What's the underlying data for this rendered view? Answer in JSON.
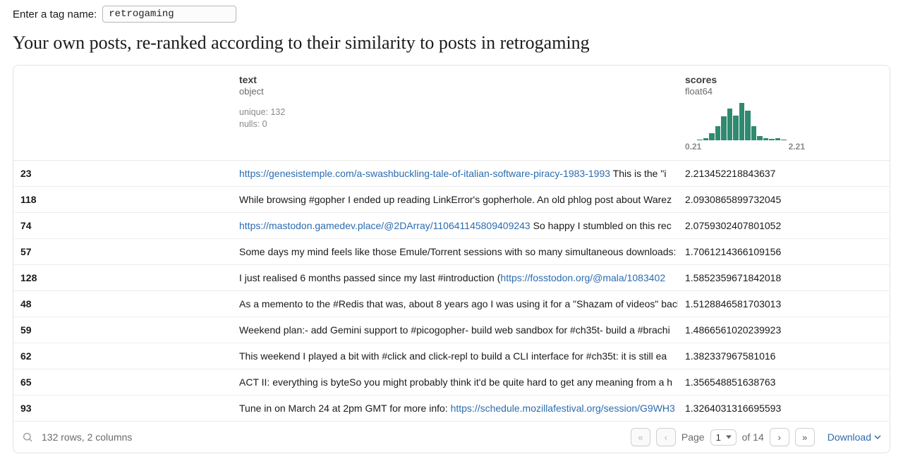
{
  "tag_entry": {
    "label": "Enter a tag name:",
    "value": "retrogaming"
  },
  "heading": "Your own posts, re-ranked according to their similarity to posts in retrogaming",
  "table": {
    "columns": {
      "text": {
        "name": "text",
        "dtype": "object",
        "meta1": "unique: 132",
        "meta2": "nulls: 0"
      },
      "scores": {
        "name": "scores",
        "dtype": "float64",
        "histogram": {
          "bars_pct": [
            0,
            0,
            2,
            6,
            18,
            35,
            58,
            78,
            60,
            92,
            72,
            35,
            10,
            5,
            3,
            5,
            2,
            0,
            0,
            0
          ],
          "axis_min": "0.21",
          "axis_max": "2.21",
          "bar_color": "#2f8a6f"
        }
      }
    },
    "rows": [
      {
        "idx": "23",
        "text_link": "https://genesistemple.com/a-swashbuckling-tale-of-italian-software-piracy-1983-1993",
        "text_after": " This is the \"i",
        "score": "2.213452218843637"
      },
      {
        "idx": "118",
        "text_plain": "While browsing #gopher I ended up reading LinkError's gopherhole. An old phlog post about Warez ",
        "score": "2.0930865899732045"
      },
      {
        "idx": "74",
        "text_link": "https://mastodon.gamedev.place/@2DArray/110641145809409243",
        "text_after": " So happy I stumbled on this rec",
        "score": "2.0759302407801052"
      },
      {
        "idx": "57",
        "text_plain": "Some days my mind feels like those Emule/Torrent sessions with so many simultaneous downloads:",
        "score": "1.7061214366109156"
      },
      {
        "idx": "128",
        "text_before": "I just realised 6 months passed since my last #introduction (",
        "text_link": "https://fosstodon.org/@mala/1083402",
        "score": "1.5852359671842018"
      },
      {
        "idx": "48",
        "text_plain": "As a memento to the #Redis that was, about 8 years ago I was using it for a \"Shazam of videos\" bacl",
        "score": "1.5128846581703013"
      },
      {
        "idx": "59",
        "text_plain": "Weekend plan:- add Gemini support to #picogopher- build web sandbox for #ch35t- build a #brachi",
        "score": "1.4866561020239923"
      },
      {
        "idx": "62",
        "text_plain": "This weekend I played a bit with #click and click-repl to build a CLI interface for #ch35t: it is still ea",
        "score": "1.382337967581016"
      },
      {
        "idx": "65",
        "text_plain": "ACT II: everything is byteSo you might probably think it'd be quite hard to get any meaning from a h",
        "score": "1.356548851638763"
      },
      {
        "idx": "93",
        "text_before": "Tune in on March 24 at 2pm GMT for more info: ",
        "text_link": "https://schedule.mozillafestival.org/session/G9WH3",
        "score": "1.3264031316695593"
      }
    ]
  },
  "footer": {
    "summary": "132 rows, 2 columns",
    "page_label_prefix": "Page",
    "page_current": "1",
    "page_of": "of 14",
    "download": "Download"
  }
}
